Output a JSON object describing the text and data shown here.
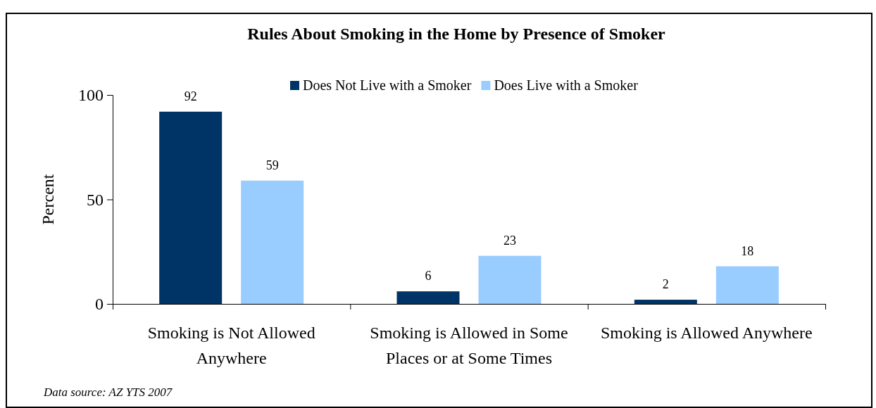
{
  "chart_data": {
    "type": "bar",
    "title": "Rules About Smoking in the Home by Presence of Smoker",
    "ylabel": "Percent",
    "categories": [
      "Smoking is Not Allowed Anywhere",
      "Smoking is Allowed in Some Places or at Some Times",
      "Smoking is Allowed Anywhere"
    ],
    "series": [
      {
        "name": "Does Not Live with a Smoker",
        "color": "#003366",
        "values": [
          92,
          6,
          2
        ]
      },
      {
        "name": "Does Live with a Smoker",
        "color": "#99ccff",
        "values": [
          59,
          23,
          18
        ]
      }
    ],
    "ylim": [
      0,
      100
    ],
    "yticks": [
      0,
      50,
      100
    ],
    "grid": false,
    "legend": "top right",
    "data_labels": true,
    "annotations": [
      "Data source: AZ YTS 2007"
    ]
  }
}
